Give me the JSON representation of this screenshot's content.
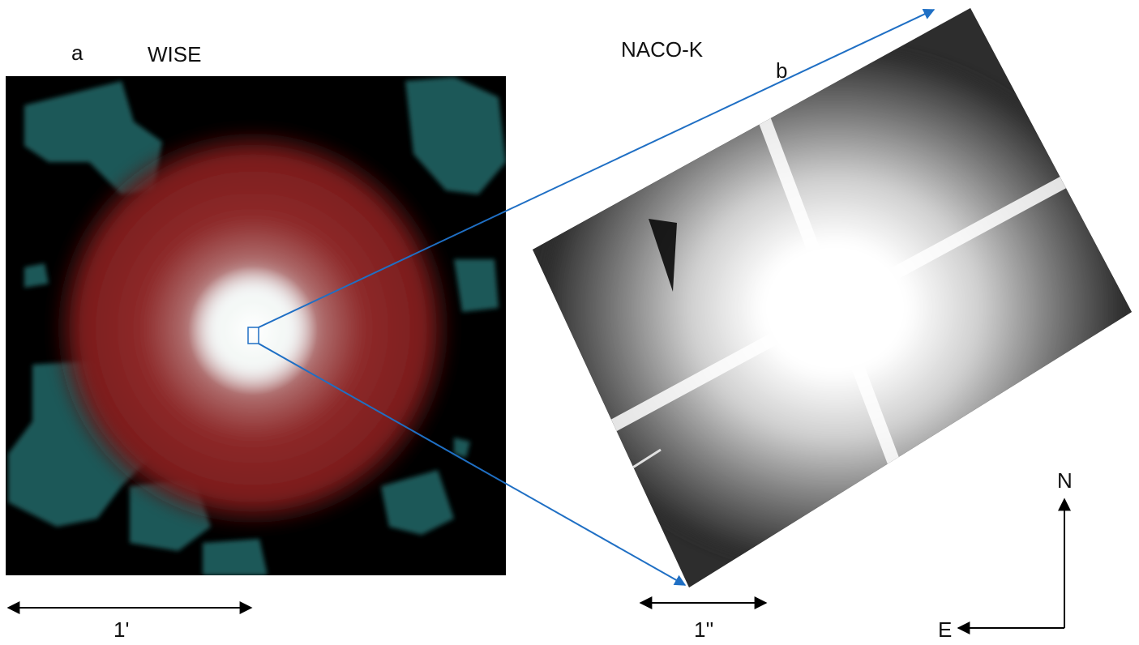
{
  "panels": {
    "left": {
      "letter": "a",
      "title": "WISE"
    },
    "right": {
      "letter": "b",
      "title": "NACO-K"
    }
  },
  "scale_bars": {
    "left": "1'",
    "right": "1''"
  },
  "compass": {
    "north": "N",
    "east": "E"
  },
  "colors": {
    "arrow": "#1f6fc4",
    "wise_halo": "#8a1e1e",
    "wise_blobs": "#1f5a5a"
  }
}
